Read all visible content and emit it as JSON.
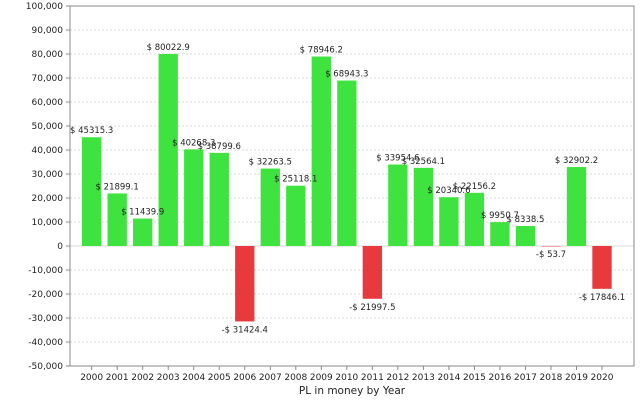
{
  "colors": {
    "positive": "#3fe33f",
    "negative": "#e8393c",
    "grid": "#d9d9d9",
    "axis": "#888888"
  },
  "chart_data": {
    "type": "bar",
    "xlabel": "PL in money by Year",
    "ylabel": "",
    "ylim": [
      -50000,
      100000
    ],
    "yticks": [
      100000,
      90000,
      80000,
      70000,
      60000,
      50000,
      40000,
      30000,
      20000,
      10000,
      0,
      -10000,
      -20000,
      -30000,
      -40000,
      -50000
    ],
    "ytick_labels": [
      "100,000",
      "90,000",
      "80,000",
      "70,000",
      "60,000",
      "50,000",
      "40,000",
      "30,000",
      "20,000",
      "10,000",
      "0",
      "-10,000",
      "-20,000",
      "-30,000",
      "-40,000",
      "-50,000"
    ],
    "grid": true,
    "categories": [
      "2000",
      "2001",
      "2002",
      "2003",
      "2004",
      "2005",
      "2006",
      "2007",
      "2008",
      "2009",
      "2010",
      "2011",
      "2012",
      "2013",
      "2014",
      "2015",
      "2016",
      "2017",
      "2018",
      "2019",
      "2020"
    ],
    "values": [
      45315.3,
      21899.1,
      11439.9,
      80022.9,
      40268.3,
      38799.6,
      -31424.4,
      32263.5,
      25118.1,
      78946.2,
      68943.3,
      -21997.5,
      33954.6,
      32564.1,
      20340.6,
      22156.2,
      9950.7,
      8338.5,
      -53.7,
      32902.2,
      -17846.1
    ],
    "data_labels": [
      "$ 45315.3",
      "$ 21899.1",
      "$ 11439.9",
      "$ 80022.9",
      "$ 40268.3",
      "$ 38799.6",
      "-$ 31424.4",
      "$ 32263.5",
      "$ 25118.1",
      "$ 78946.2",
      "$ 68943.3",
      "-$ 21997.5",
      "$ 33954.6",
      "$ 32564.1",
      "$ 20340.6",
      "$ 22156.2",
      "$ 9950.7",
      "$ 8338.5",
      "-$ 53.7",
      "$ 32902.2",
      "-$ 17846.1"
    ]
  }
}
